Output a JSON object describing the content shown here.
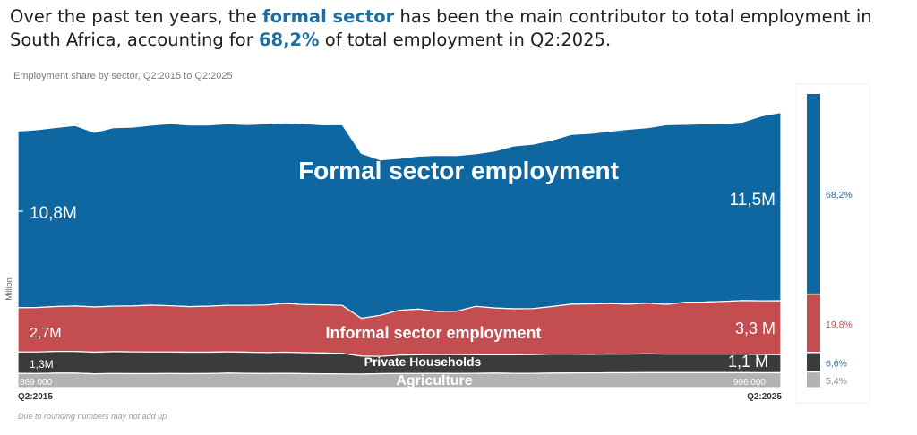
{
  "headline": {
    "part1": "Over the past ten years, the ",
    "highlight1": "formal sector",
    "part2": " has been the main contributor to total employment in South Africa, accounting for ",
    "highlight2": "68,2%",
    "part3": " of total employment in Q2:2025."
  },
  "subtitle": "Employment share by sector, Q2:2015 to Q2:2025",
  "ylabel": "Million",
  "footnote": "Due to rounding numbers may not add up",
  "colors": {
    "formal": "#0f67a1",
    "informal": "#c34d4f",
    "households": "#3b3b3b",
    "agriculture": "#b2b2b2",
    "formal_pct_text": "#1f6e9f",
    "informal_pct_text": "#c34d4f",
    "households_pct_text": "#1f6e9f",
    "agriculture_pct_text": "#8a8a8a"
  },
  "chart_data": [
    {
      "type": "area",
      "stacked": true,
      "title": "Employment share by sector, Q2:2015 to Q2:2025",
      "ylabel": "Million",
      "x_start": "Q2:2015",
      "x_end": "Q2:2025",
      "ylim": [
        0,
        17.5
      ],
      "series": [
        {
          "name": "Agriculture",
          "values": [
            0.87,
            0.86,
            0.88,
            0.88,
            0.84,
            0.86,
            0.85,
            0.85,
            0.86,
            0.85,
            0.86,
            0.88,
            0.87,
            0.86,
            0.87,
            0.85,
            0.84,
            0.83,
            0.82,
            0.85,
            0.86,
            0.86,
            0.87,
            0.86,
            0.87,
            0.88,
            0.87,
            0.87,
            0.88,
            0.89,
            0.89,
            0.9,
            0.9,
            0.91,
            0.91,
            0.91,
            0.91,
            0.91,
            0.91,
            0.9,
            0.906
          ],
          "start_label": "869 000",
          "end_label": "906 000"
        },
        {
          "name": "Private Households",
          "values": [
            1.3,
            1.31,
            1.33,
            1.33,
            1.32,
            1.33,
            1.33,
            1.32,
            1.31,
            1.31,
            1.3,
            1.3,
            1.29,
            1.28,
            1.29,
            1.28,
            1.27,
            1.26,
            1.1,
            1.05,
            1.12,
            1.14,
            1.14,
            1.15,
            1.13,
            1.12,
            1.13,
            1.15,
            1.16,
            1.15,
            1.14,
            1.15,
            1.14,
            1.15,
            1.13,
            1.13,
            1.13,
            1.13,
            1.13,
            1.12,
            1.1
          ],
          "start_label": "1,3M",
          "end_label": "1,1 M"
        },
        {
          "name": "Informal sector employment",
          "values": [
            2.7,
            2.72,
            2.74,
            2.77,
            2.76,
            2.78,
            2.8,
            2.86,
            2.82,
            2.78,
            2.81,
            2.84,
            2.86,
            2.9,
            2.98,
            2.94,
            2.94,
            2.93,
            2.31,
            2.51,
            2.74,
            2.79,
            2.63,
            2.65,
            2.96,
            2.86,
            2.81,
            2.8,
            2.91,
            3.05,
            3.07,
            3.08,
            3.05,
            3.09,
            3.04,
            3.17,
            3.18,
            3.22,
            3.27,
            3.28,
            3.3
          ],
          "start_label": "2,7M",
          "end_label": "3,3 M"
        },
        {
          "name": "Formal sector employment",
          "values": [
            10.8,
            10.86,
            10.94,
            11.03,
            10.67,
            10.9,
            10.93,
            11.0,
            11.14,
            11.1,
            11.07,
            11.1,
            11.05,
            11.07,
            11.04,
            11.06,
            11.0,
            11.05,
            10.08,
            9.5,
            9.28,
            9.35,
            9.55,
            9.51,
            9.32,
            9.59,
            9.95,
            10.05,
            10.16,
            10.37,
            10.43,
            10.53,
            10.69,
            10.73,
            10.98,
            10.87,
            10.89,
            10.86,
            10.91,
            11.3,
            11.5
          ],
          "start_label": "10,8M",
          "end_label": "11,5M"
        }
      ]
    },
    {
      "type": "bar",
      "stacked": true,
      "categories": [
        "Q2:2025"
      ],
      "series": [
        {
          "name": "Formal sector employment",
          "values": [
            68.2
          ],
          "label": "68,2%"
        },
        {
          "name": "Informal sector employment",
          "values": [
            19.8
          ],
          "label": "19,8%"
        },
        {
          "name": "Private Households",
          "values": [
            6.6
          ],
          "label": "6,6%"
        },
        {
          "name": "Agriculture",
          "values": [
            5.4
          ],
          "label": "5,4%"
        }
      ],
      "unit": "%"
    }
  ]
}
